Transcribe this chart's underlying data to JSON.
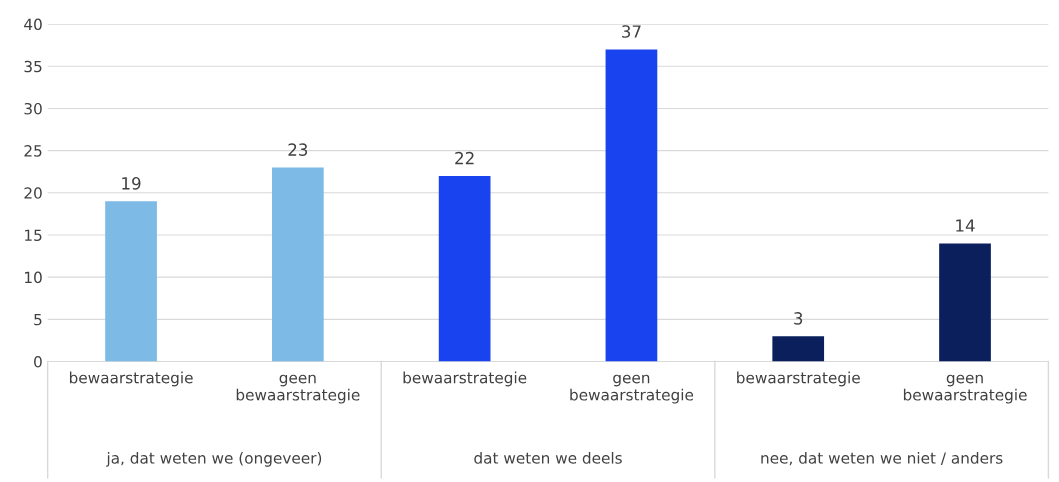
{
  "chart_data": {
    "type": "bar",
    "categories": [
      "bewaarstrategie",
      "geen bewaarstrategie",
      "bewaarstrategie",
      "geen bewaarstrategie",
      "bewaarstrategie",
      "geen bewaarstrategie"
    ],
    "values": [
      19,
      23,
      22,
      37,
      3,
      14
    ],
    "colors": [
      "#7dbae6",
      "#7dbae6",
      "#1a43f0",
      "#1a43f0",
      "#0a1f5c",
      "#0a1f5c"
    ],
    "annotations": [
      "ja, dat weten we (ongeveer)",
      "dat weten we deels",
      "nee, dat weten we niet / anders"
    ],
    "ylim": [
      0,
      40
    ],
    "yticks": [
      0,
      5,
      10,
      15,
      20,
      25,
      30,
      35,
      40
    ],
    "grid": "y",
    "data_labels": true
  }
}
